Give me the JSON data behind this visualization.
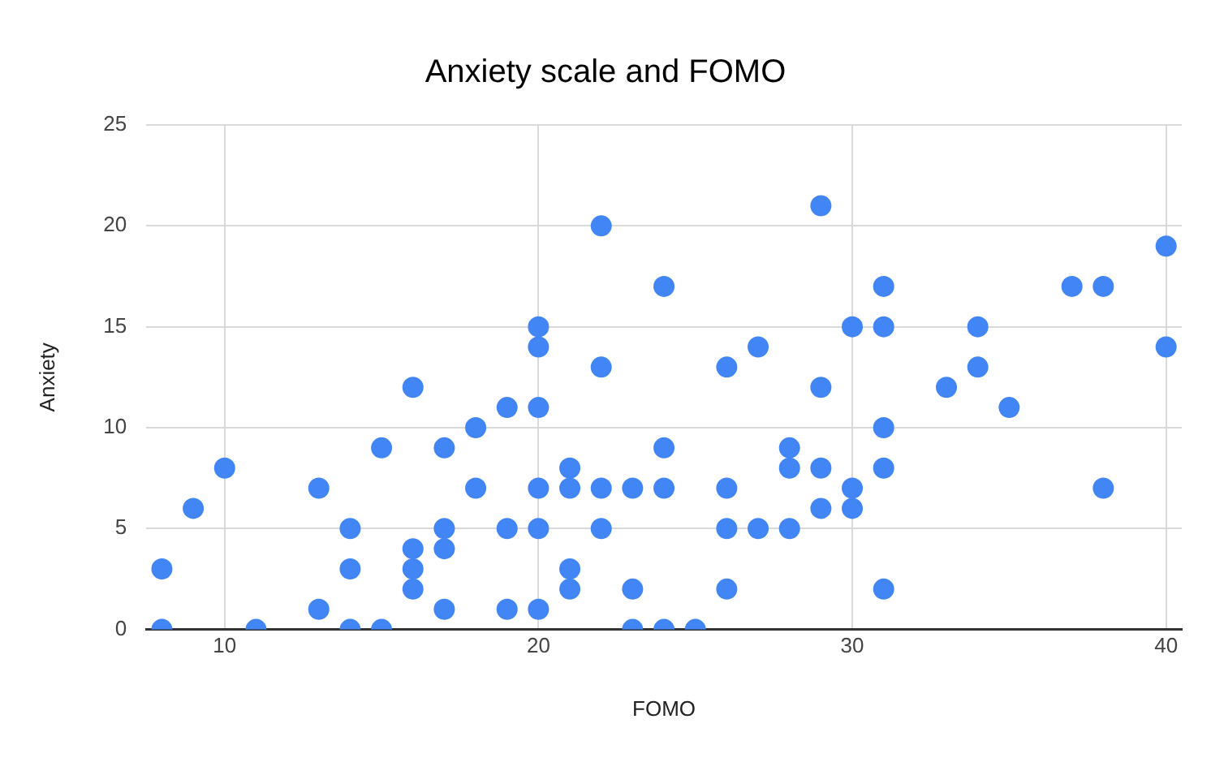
{
  "chart_data": {
    "type": "scatter",
    "title": "Anxiety scale and FOMO",
    "xlabel": "FOMO",
    "ylabel": "Anxiety",
    "x": [
      8,
      8,
      9,
      10,
      11,
      13,
      13,
      14,
      14,
      14,
      15,
      15,
      16,
      16,
      16,
      16,
      17,
      17,
      17,
      17,
      18,
      18,
      19,
      19,
      19,
      20,
      20,
      20,
      20,
      20,
      20,
      21,
      21,
      21,
      21,
      22,
      22,
      22,
      22,
      23,
      23,
      23,
      24,
      24,
      24,
      24,
      25,
      26,
      26,
      26,
      26,
      27,
      27,
      28,
      28,
      28,
      29,
      29,
      29,
      29,
      30,
      30,
      30,
      31,
      31,
      31,
      31,
      31,
      33,
      34,
      34,
      35,
      37,
      38,
      38,
      40,
      40
    ],
    "values": [
      3,
      0,
      6,
      8,
      0,
      7,
      1,
      5,
      3,
      0,
      9,
      0,
      12,
      4,
      3,
      2,
      9,
      5,
      4,
      1,
      10,
      7,
      11,
      5,
      1,
      15,
      14,
      11,
      7,
      5,
      1,
      8,
      7,
      3,
      2,
      20,
      13,
      7,
      5,
      7,
      2,
      0,
      17,
      9,
      7,
      0,
      0,
      13,
      7,
      5,
      2,
      14,
      5,
      9,
      8,
      5,
      21,
      12,
      8,
      6,
      15,
      7,
      6,
      17,
      15,
      10,
      8,
      2,
      12,
      15,
      13,
      11,
      17,
      17,
      7,
      19,
      14
    ],
    "color": "#4285f4",
    "xlim": [
      7.5,
      40.5
    ],
    "xticks": [
      10,
      20,
      30,
      40
    ],
    "ylim": [
      0,
      25
    ],
    "yticks": [
      0,
      5,
      10,
      15,
      20,
      25
    ],
    "grid": true,
    "marker": "circle"
  }
}
